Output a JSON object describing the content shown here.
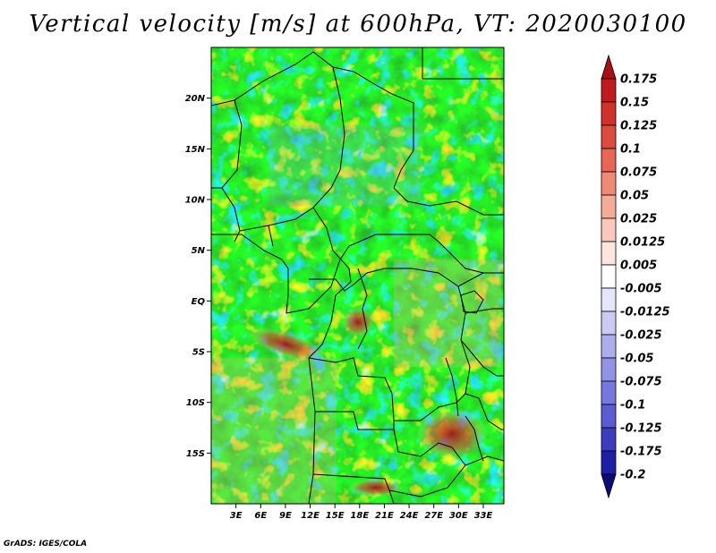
{
  "title": "Vertical velocity [m/s] at 600hPa, VT: 2020030100",
  "credit": "GrADS: IGES/COLA",
  "colors": {
    "positive_dark": "#a50f15",
    "positive_light": "#fcbba1",
    "negative_light": "#c6c8f5",
    "negative_dark": "#1a1a8c",
    "frame": "#000000"
  },
  "map": {
    "lon_range": [
      0,
      35.5
    ],
    "lat_range": [
      -20,
      25
    ],
    "lat_labels": [
      "20N",
      "15N",
      "10N",
      "5N",
      "EQ",
      "5S",
      "10S",
      "15S"
    ],
    "lat_values": [
      20,
      15,
      10,
      5,
      0,
      -5,
      -10,
      -15
    ],
    "lon_labels": [
      "3E",
      "6E",
      "9E",
      "12E",
      "15E",
      "18E",
      "21E",
      "24E",
      "27E",
      "30E",
      "33E"
    ],
    "lon_values": [
      3,
      6,
      9,
      12,
      15,
      18,
      21,
      24,
      27,
      30,
      33
    ]
  },
  "colorbar": {
    "labels": [
      "0.175",
      "0.15",
      "0.125",
      "0.1",
      "0.075",
      "0.05",
      "0.025",
      "0.0125",
      "0.005",
      "-0.005",
      "-0.0125",
      "-0.025",
      "-0.05",
      "-0.075",
      "-0.1",
      "-0.125",
      "-0.175",
      "-0.2"
    ],
    "colors": [
      "#a50f15",
      "#c01a1e",
      "#d1302b",
      "#de4a3d",
      "#e76655",
      "#ef8a76",
      "#f6ab98",
      "#fbc9bb",
      "#fde4dc",
      "#ffffff",
      "#e5e5fb",
      "#cacaf5",
      "#aeaeee",
      "#9393e6",
      "#7777dd",
      "#5b5bd2",
      "#3c3cbf",
      "#1f1fa3",
      "#0c0c78"
    ]
  }
}
